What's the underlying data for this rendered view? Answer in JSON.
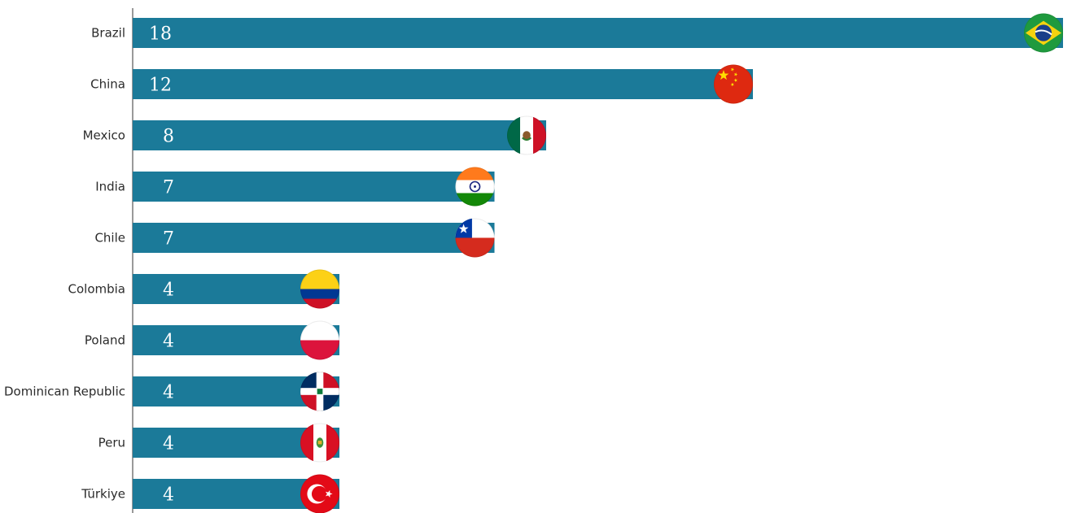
{
  "chart_data": {
    "type": "bar",
    "orientation": "horizontal",
    "title": "",
    "xlabel": "",
    "ylabel": "",
    "grid": false,
    "categories": [
      "Brazil",
      "China",
      "Mexico",
      "India",
      "Chile",
      "Colombia",
      "Poland",
      "Dominican Republic",
      "Peru",
      "Türkiye"
    ],
    "values": [
      18,
      12,
      8,
      7,
      7,
      4,
      4,
      4,
      4,
      4
    ],
    "xlim": [
      0,
      18
    ],
    "bar_color": "#1b7a99",
    "flag_icons": [
      "brazil-flag-icon",
      "china-flag-icon",
      "mexico-flag-icon",
      "india-flag-icon",
      "chile-flag-icon",
      "colombia-flag-icon",
      "poland-flag-icon",
      "dominican-republic-flag-icon",
      "peru-flag-icon",
      "turkiye-flag-icon"
    ]
  }
}
